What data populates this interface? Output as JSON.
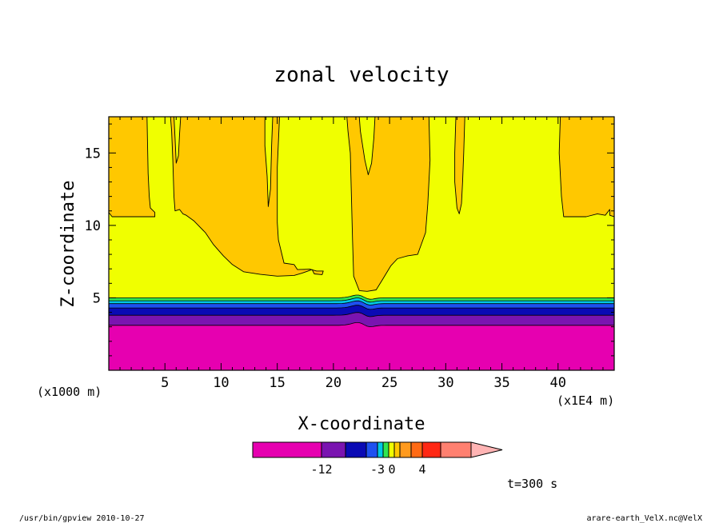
{
  "chart_data": {
    "type": "heatmap",
    "title": "zonal velocity",
    "xlabel": "X-coordinate",
    "ylabel": "Z-coordinate",
    "x_unit_left": "(x1000 m)",
    "x_unit_right": "(x1E4 m)",
    "xlim": [
      0,
      45
    ],
    "ylim": [
      0,
      17.5
    ],
    "xticks": [
      5,
      10,
      15,
      20,
      25,
      30,
      35,
      40
    ],
    "yticks": [
      5,
      10,
      15
    ],
    "time_label": "t=300 s",
    "footer_left": "/usr/bin/gpview  2010-10-27",
    "footer_right": "arare-earth_VelX.nc@VelX",
    "colors": {
      "magenta": "#e600b0",
      "purple": "#7a14b0",
      "navy": "#0a0ab4",
      "blue": "#1e50f0",
      "cyan": "#00c8e6",
      "green": "#30e650",
      "yellow": "#f0ff00",
      "orange_light": "#ffc800",
      "orange": "#ff9a1e",
      "dark_orange": "#ff6a14",
      "red": "#ff2814",
      "salmon": "#ff8070",
      "pink": "#ffb4b4"
    },
    "colorbar": {
      "tick_labels": [
        "-12",
        "-3",
        "0",
        "4"
      ],
      "tick_positions": [
        -12,
        -3,
        0,
        4
      ]
    },
    "bands": [
      {
        "name": "magenta",
        "z_top": 3.1
      },
      {
        "name": "purple",
        "z_top": 3.8
      },
      {
        "name": "navy",
        "z_top": 4.3
      },
      {
        "name": "blue",
        "z_top": 4.6
      },
      {
        "name": "cyan",
        "z_top": 4.8
      },
      {
        "name": "green",
        "z_top": 5.0
      },
      {
        "name": "yellow",
        "z_top": 17.5
      }
    ]
  }
}
